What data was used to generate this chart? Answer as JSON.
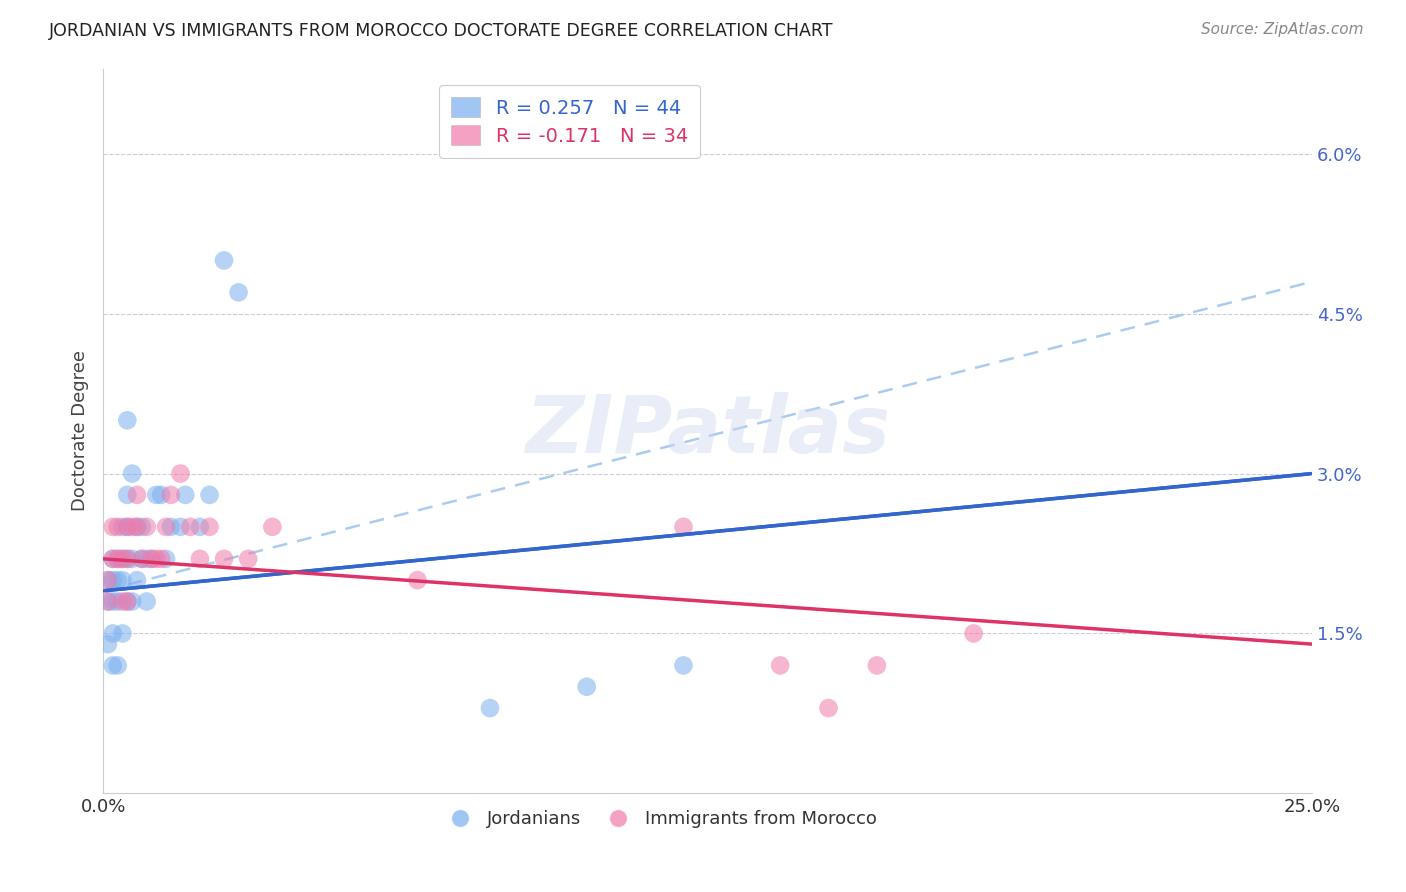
{
  "title": "JORDANIAN VS IMMIGRANTS FROM MOROCCO DOCTORATE DEGREE CORRELATION CHART",
  "source": "Source: ZipAtlas.com",
  "ylabel": "Doctorate Degree",
  "ytick_labels": [
    "6.0%",
    "4.5%",
    "3.0%",
    "1.5%"
  ],
  "ytick_values": [
    0.06,
    0.045,
    0.03,
    0.015
  ],
  "xlim": [
    0.0,
    0.25
  ],
  "ylim": [
    0.0,
    0.068
  ],
  "xtick_labels": [
    "0.0%",
    "25.0%"
  ],
  "xtick_values": [
    0.0,
    0.25
  ],
  "legend_r1": "R = 0.257",
  "legend_n1": "N = 44",
  "legend_r2": "R = -0.171",
  "legend_n2": "N = 34",
  "color_blue": "#7aaff0",
  "color_pink": "#f07aaa",
  "color_trend_blue": "#3366cc",
  "color_trend_pink": "#dd3366",
  "color_dashed_blue": "#aaccee",
  "background_color": "#ffffff",
  "grid_color": "#ccccdd",
  "watermark_text": "ZIPatlas",
  "trend_blue_x0": 0.0,
  "trend_blue_y0": 0.019,
  "trend_blue_x1": 0.25,
  "trend_blue_y1": 0.03,
  "trend_dashed_x0": 0.0,
  "trend_dashed_y0": 0.019,
  "trend_dashed_x1": 0.25,
  "trend_dashed_y1": 0.048,
  "trend_pink_x0": 0.0,
  "trend_pink_y0": 0.022,
  "trend_pink_x1": 0.25,
  "trend_pink_y1": 0.014,
  "jordanians_x": [
    0.001,
    0.001,
    0.001,
    0.002,
    0.002,
    0.002,
    0.002,
    0.002,
    0.003,
    0.003,
    0.003,
    0.003,
    0.004,
    0.004,
    0.004,
    0.004,
    0.005,
    0.005,
    0.005,
    0.005,
    0.005,
    0.006,
    0.006,
    0.006,
    0.007,
    0.007,
    0.008,
    0.008,
    0.009,
    0.009,
    0.01,
    0.011,
    0.012,
    0.013,
    0.014,
    0.016,
    0.017,
    0.02,
    0.022,
    0.025,
    0.028,
    0.08,
    0.1,
    0.12
  ],
  "jordanians_y": [
    0.02,
    0.018,
    0.014,
    0.022,
    0.02,
    0.018,
    0.015,
    0.012,
    0.022,
    0.02,
    0.018,
    0.012,
    0.025,
    0.022,
    0.02,
    0.015,
    0.035,
    0.028,
    0.025,
    0.022,
    0.018,
    0.03,
    0.022,
    0.018,
    0.025,
    0.02,
    0.025,
    0.022,
    0.022,
    0.018,
    0.022,
    0.028,
    0.028,
    0.022,
    0.025,
    0.025,
    0.028,
    0.025,
    0.028,
    0.05,
    0.047,
    0.008,
    0.01,
    0.012
  ],
  "morocco_x": [
    0.001,
    0.001,
    0.002,
    0.002,
    0.003,
    0.003,
    0.004,
    0.004,
    0.005,
    0.005,
    0.005,
    0.006,
    0.007,
    0.007,
    0.008,
    0.009,
    0.01,
    0.011,
    0.012,
    0.013,
    0.014,
    0.016,
    0.018,
    0.02,
    0.022,
    0.025,
    0.03,
    0.035,
    0.065,
    0.12,
    0.14,
    0.15,
    0.16,
    0.18
  ],
  "morocco_y": [
    0.02,
    0.018,
    0.025,
    0.022,
    0.025,
    0.022,
    0.022,
    0.018,
    0.025,
    0.022,
    0.018,
    0.025,
    0.028,
    0.025,
    0.022,
    0.025,
    0.022,
    0.022,
    0.022,
    0.025,
    0.028,
    0.03,
    0.025,
    0.022,
    0.025,
    0.022,
    0.022,
    0.025,
    0.02,
    0.025,
    0.012,
    0.008,
    0.012,
    0.015
  ]
}
